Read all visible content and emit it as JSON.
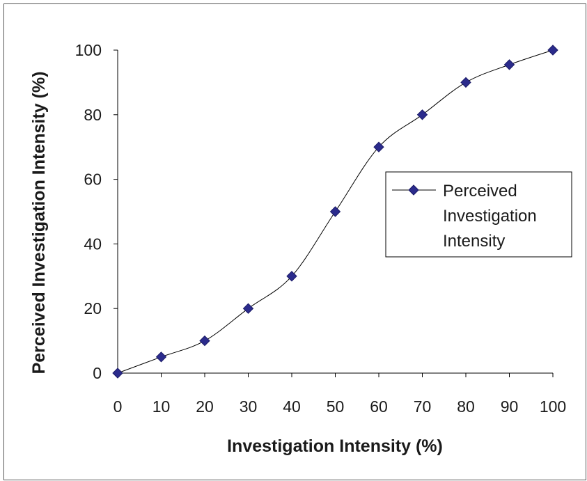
{
  "chart_data": {
    "type": "line",
    "title": "",
    "xlabel": "Investigation Intensity (%)",
    "ylabel": "Perceived Investigation Intensity (%)",
    "x": [
      0,
      10,
      20,
      30,
      40,
      50,
      60,
      70,
      80,
      90,
      100
    ],
    "series": [
      {
        "name": "Perceived Investigation Intensity",
        "values": [
          0,
          5,
          10,
          20,
          30,
          50,
          70,
          80,
          90,
          95.5,
          100
        ],
        "color": "#2b2b8c",
        "marker": "diamond"
      }
    ],
    "xlim": [
      0,
      100
    ],
    "ylim": [
      0,
      100
    ],
    "xticks": [
      "0",
      "10",
      "20",
      "30",
      "40",
      "50",
      "60",
      "70",
      "80",
      "90",
      "100"
    ],
    "yticks": [
      "0",
      "20",
      "40",
      "60",
      "80",
      "100"
    ],
    "grid": false,
    "legend": {
      "placement": "right",
      "lines": [
        "Perceived",
        "Investigation",
        "Intensity"
      ]
    }
  }
}
